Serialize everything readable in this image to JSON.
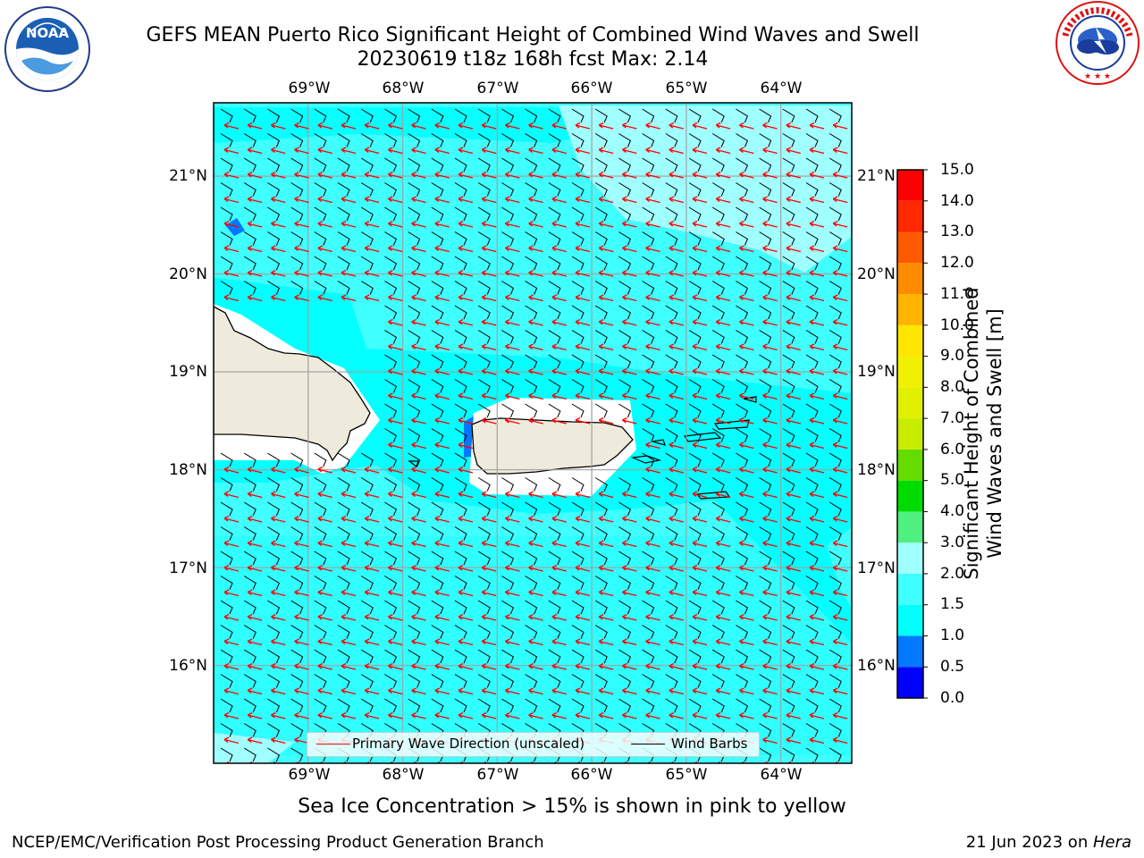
{
  "header": {
    "title_line1": "GEFS MEAN Puerto Rico Significant Height of Combined Wind Waves and Swell",
    "title_line2": "20230619 t18z 168h fcst   Max: 2.14"
  },
  "logos": {
    "noaa": {
      "label": "NOAA",
      "ring_text": "NATIONAL OCEANIC AND ATMOSPHERIC ADMINISTRATION · U.S. DEPARTMENT OF COMMERCE"
    },
    "nws": {
      "ring_text": "NATIONAL WEATHER SERVICE"
    }
  },
  "map": {
    "lon_labels": [
      "69°W",
      "68°W",
      "67°W",
      "66°W",
      "65°W",
      "64°W"
    ],
    "lat_labels": [
      "21°N",
      "20°N",
      "19°N",
      "18°N",
      "17°N",
      "16°N"
    ],
    "lon_range": [
      -70.0,
      -63.25
    ],
    "lat_range": [
      15.0,
      21.75
    ],
    "gridlines": true,
    "ocean_color": "#00ffff",
    "land_color": "#efebdc",
    "legend": {
      "wave_direction": "Primary Wave Direction (unscaled)",
      "wind_barbs": "Wind Barbs",
      "wave_arrow_color": "#ff0000",
      "wind_barb_color": "#000000"
    }
  },
  "colorbar": {
    "label_line1": "Significant Height of Combined",
    "label_line2": "Wind Waves and Swell [m]",
    "ticks": [
      "15.0",
      "14.0",
      "13.0",
      "12.0",
      "11.0",
      "10.0",
      "9.0",
      "8.0",
      "7.0",
      "6.0",
      "5.0",
      "4.0",
      "3.0",
      "2.0",
      "1.5",
      "1.0",
      "0.5",
      "0.0"
    ],
    "bins": [
      {
        "from": 0.0,
        "to": 0.5,
        "color": "#0000ff"
      },
      {
        "from": 0.5,
        "to": 1.0,
        "color": "#0078ff"
      },
      {
        "from": 1.0,
        "to": 1.5,
        "color": "#00ffff"
      },
      {
        "from": 1.5,
        "to": 2.0,
        "color": "#40ffff"
      },
      {
        "from": 2.0,
        "to": 3.0,
        "color": "#a0ffff"
      },
      {
        "from": 3.0,
        "to": 4.0,
        "color": "#50f080"
      },
      {
        "from": 4.0,
        "to": 5.0,
        "color": "#00dc00"
      },
      {
        "from": 5.0,
        "to": 6.0,
        "color": "#64dc00"
      },
      {
        "from": 6.0,
        "to": 7.0,
        "color": "#c8ec00"
      },
      {
        "from": 7.0,
        "to": 8.0,
        "color": "#e0f000"
      },
      {
        "from": 8.0,
        "to": 9.0,
        "color": "#f0f000"
      },
      {
        "from": 9.0,
        "to": 10.0,
        "color": "#ffe600"
      },
      {
        "from": 10.0,
        "to": 11.0,
        "color": "#ffb400"
      },
      {
        "from": 11.0,
        "to": 12.0,
        "color": "#ff8c00"
      },
      {
        "from": 12.0,
        "to": 13.0,
        "color": "#ff5a00"
      },
      {
        "from": 13.0,
        "to": 14.0,
        "color": "#ff2800"
      },
      {
        "from": 14.0,
        "to": 15.0,
        "color": "#ff0000"
      }
    ]
  },
  "caption": "Sea Ice Concentration > 15% is shown in pink to yellow",
  "footer": {
    "left": "NCEP/EMC/Verification Post Processing Product Generation Branch",
    "right_prefix": "21 Jun 2023 on ",
    "right_machine": "Hera"
  }
}
